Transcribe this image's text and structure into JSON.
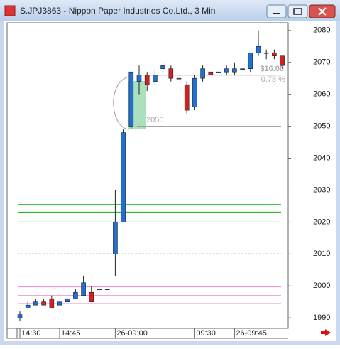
{
  "window_title": "S.JPJ3863 - Nippon Paper Industries Co.Ltd., 3 Min",
  "chart_data": {
    "type": "candlestick",
    "categories": [
      "14:30",
      null,
      null,
      null,
      null,
      "14:45",
      null,
      null,
      null,
      null,
      null,
      null,
      "26-09:00",
      null,
      null,
      null,
      null,
      null,
      null,
      null,
      null,
      null,
      "09:30",
      null,
      null,
      null,
      null,
      "26-09:45",
      null,
      null,
      null,
      null,
      null,
      null
    ],
    "series": [
      {
        "up_color": "#1f6fd6",
        "down_color": "#d42020",
        "open": [
          1990,
          1993,
          1994,
          1995,
          1996,
          1994,
          1995,
          1996,
          1997,
          1998,
          1999,
          1999,
          2010,
          2020,
          2050,
          2064,
          2066,
          2064,
          2068,
          2068,
          2065,
          2063,
          2056,
          2065,
          2067,
          2067,
          2067,
          2067,
          2068,
          2068,
          2073,
          2073,
          2073,
          2072
        ],
        "high": [
          1992,
          1995,
          1996,
          1996,
          1997,
          1995,
          1996,
          1999,
          2003,
          2000,
          1999,
          1999,
          2030,
          2049,
          2067,
          2069,
          2067,
          2068,
          2070,
          2069,
          2065,
          2064,
          2066,
          2069,
          2067,
          2067,
          2069,
          2070,
          2068,
          2073,
          2080,
          2074,
          2074,
          2072
        ],
        "low": [
          1989,
          1993,
          1994,
          1994,
          1993,
          1994,
          1995,
          1996,
          1997,
          1995,
          1999,
          1999,
          2003,
          2020,
          2049,
          2060,
          2061,
          2063,
          2067,
          2064,
          2065,
          2054,
          2055,
          2064,
          2066,
          2067,
          2066,
          2066,
          2068,
          2067,
          2072,
          2071,
          2071,
          2068
        ],
        "close": [
          1991,
          1994,
          1995,
          1994,
          1993,
          1995,
          1996,
          1998,
          2001,
          1995,
          1999,
          1999,
          2020,
          2048,
          2067,
          2066,
          2063,
          2066,
          2069,
          2065,
          2065,
          2055,
          2065,
          2068,
          2066,
          2067,
          2068,
          2068,
          2068,
          2073,
          2075,
          2073,
          2072,
          2069
        ]
      }
    ],
    "ylim": [
      1986.7,
      2082.4
    ],
    "yticks": [
      1990,
      2000,
      2010,
      2020,
      2030,
      2040,
      2050,
      2060,
      2070,
      2080
    ],
    "hlines": [
      {
        "value": 2066,
        "color": "#999999",
        "dash": false,
        "from": 15
      },
      {
        "value": 2050,
        "color": "#999999",
        "dash": false,
        "from": 15
      },
      {
        "value": 2025.5,
        "color": "#22bb22",
        "dash": false,
        "from": 0
      },
      {
        "value": 2023,
        "color": "#22bb22",
        "dash": false,
        "from": 0
      },
      {
        "value": 2020,
        "color": "#22bb22",
        "dash": false,
        "from": 0
      },
      {
        "value": 2010,
        "color": "#888888",
        "dash": true,
        "from": 0
      },
      {
        "value": 1999.7,
        "color": "#ee88cc",
        "dash": false,
        "from": 0
      },
      {
        "value": 1997,
        "color": "#ee88cc",
        "dash": false,
        "from": 0
      },
      {
        "value": 1994.5,
        "color": "#ee88cc",
        "dash": false,
        "from": 0
      }
    ],
    "annotations": [
      "$16.00",
      "0.78 %",
      "2050"
    ]
  }
}
